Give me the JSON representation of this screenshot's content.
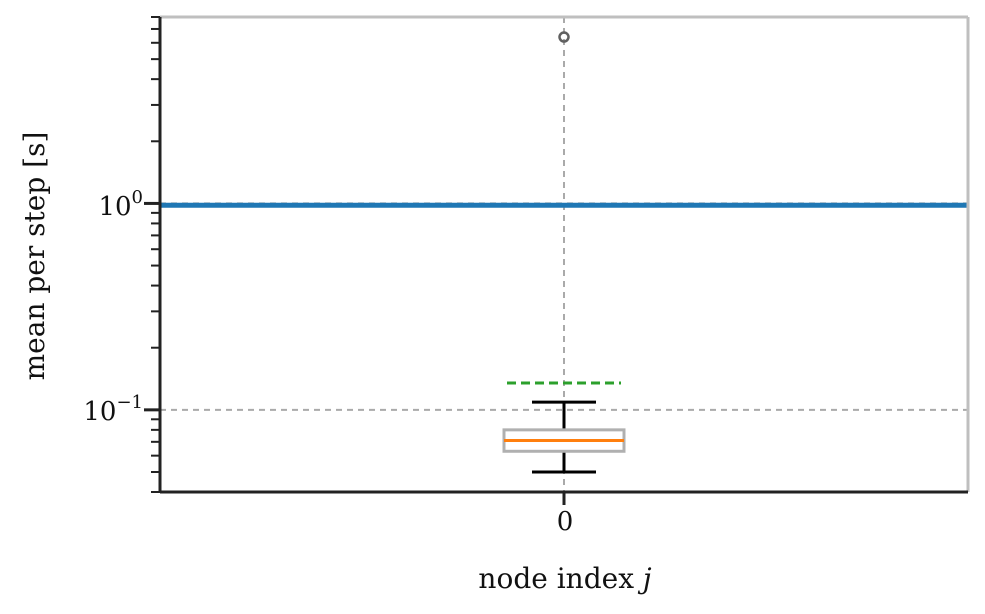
{
  "chart_data": {
    "type": "box",
    "title": "",
    "xlabel_text": "node index",
    "xlabel_var": "j",
    "ylabel": "mean per step [s]",
    "y_scale": "log",
    "ylim": [
      0.04,
      8.0
    ],
    "grid": "dashed",
    "categories": [
      "0"
    ],
    "y_ticks": [
      {
        "value": 0.1,
        "base": "10",
        "exp": "−1"
      },
      {
        "value": 1.0,
        "base": "10",
        "exp": "0"
      }
    ],
    "box": {
      "category": "0",
      "q1": 0.063,
      "median": 0.071,
      "q3": 0.08,
      "whisker_low": 0.05,
      "whisker_high": 0.109,
      "mean": 0.135,
      "outliers": [
        6.4
      ]
    },
    "reference_line": {
      "value": 0.98
    },
    "colors": {
      "box": "#b0b0b0",
      "median": "#ff7f0e",
      "mean": "#2ca02c",
      "reference": "#1f77b4",
      "whisker": "#000000",
      "grid": "#aaaaaa",
      "outlier": "#606060"
    }
  }
}
